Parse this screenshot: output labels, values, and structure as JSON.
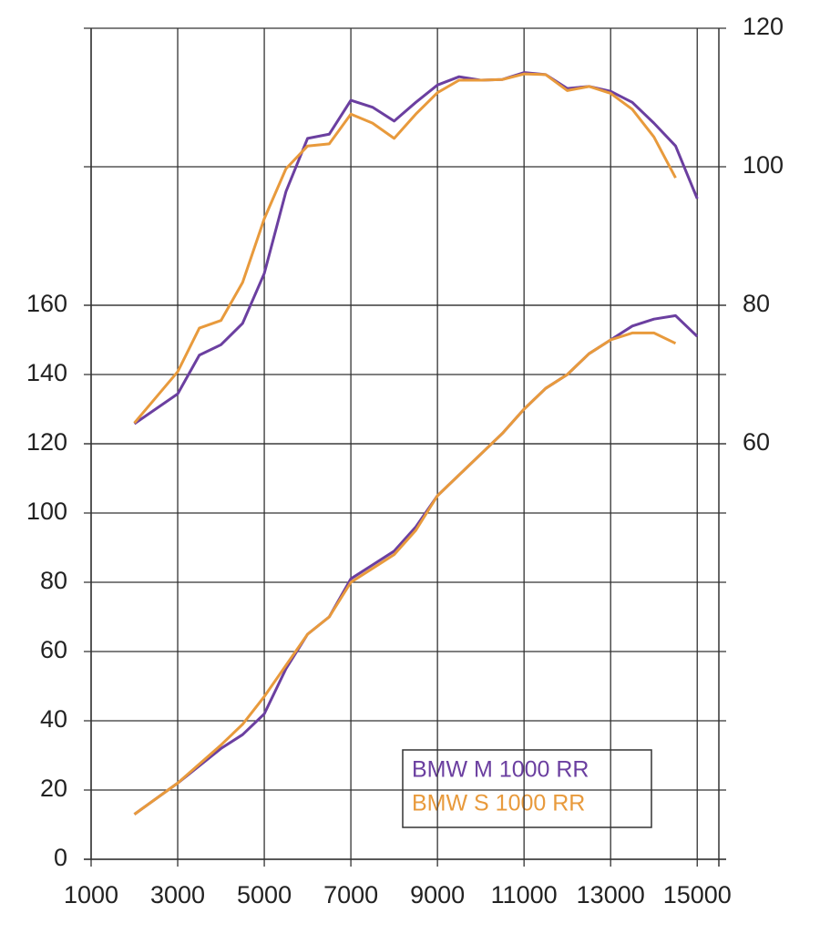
{
  "chart_data": {
    "type": "line",
    "xlim": [
      1000,
      15500
    ],
    "xticks": [
      1000,
      3000,
      5000,
      7000,
      9000,
      11000,
      13000,
      15000
    ],
    "ylim": [
      0,
      240
    ],
    "yticks": [
      0,
      20,
      40,
      60,
      80,
      100,
      120,
      140,
      160
    ],
    "y2lim": [
      0,
      120
    ],
    "y2ticks": [
      60,
      80,
      100,
      120
    ],
    "grid": true,
    "legend": "lower right",
    "series": [
      {
        "name": "BMW M 1000 RR",
        "color": "#6b3fa0",
        "axis": "y2",
        "x": [
          2000,
          3000,
          3500,
          4000,
          4500,
          5000,
          5500,
          6000,
          6500,
          7000,
          7500,
          8000,
          8500,
          9000,
          9500,
          10000,
          10500,
          11000,
          11500,
          12000,
          12500,
          13000,
          13500,
          14000,
          14500,
          15000
        ],
        "values": [
          62.9,
          67.2,
          72.8,
          74.3,
          77.4,
          84.6,
          96.4,
          104.1,
          104.7,
          109.6,
          108.6,
          106.6,
          109.3,
          111.8,
          113,
          112.5,
          112.6,
          113.6,
          113.3,
          111.3,
          111.6,
          110.9,
          109.3,
          106.3,
          103,
          95.4
        ]
      },
      {
        "name": "BMW S 1000 RR",
        "color": "#e89a3c",
        "axis": "y2",
        "x": [
          2000,
          3000,
          3500,
          4000,
          4500,
          5000,
          5500,
          6000,
          6500,
          7000,
          7500,
          8000,
          8500,
          9000,
          9500,
          10000,
          10500,
          11000,
          11500,
          12000,
          12500,
          13000,
          13500,
          14000,
          14500
        ],
        "values": [
          63,
          70.4,
          76.7,
          77.8,
          83.3,
          92.5,
          99.7,
          103,
          103.3,
          107.6,
          106.3,
          104.1,
          107.6,
          110.7,
          112.5,
          112.5,
          112.6,
          113.4,
          113.3,
          111,
          111.6,
          110.6,
          108.3,
          104.3,
          98.4
        ]
      },
      {
        "name": "BMW M 1000 RR",
        "color": "#6b3fa0",
        "x": [
          2000,
          3000,
          4000,
          4500,
          5000,
          5500,
          6000,
          6500,
          7000,
          7500,
          8000,
          8500,
          9000,
          9500,
          10000,
          10500,
          11000,
          11500,
          12000,
          12500,
          13000,
          13500,
          14000,
          14500,
          15000
        ],
        "values": [
          13,
          22,
          32,
          36,
          42,
          55,
          65,
          70,
          81,
          85,
          89,
          96,
          105,
          111,
          117,
          123,
          130,
          136,
          140,
          146,
          150,
          154,
          156,
          157,
          151
        ]
      },
      {
        "name": "BMW S 1000 RR",
        "color": "#e89a3c",
        "x": [
          2000,
          3000,
          4000,
          4500,
          5000,
          5500,
          6000,
          6500,
          7000,
          7500,
          8000,
          8500,
          9000,
          9500,
          10000,
          10500,
          11000,
          11500,
          12000,
          12500,
          13000,
          13500,
          14000,
          14500
        ],
        "values": [
          13,
          22,
          33,
          39,
          47,
          56,
          65,
          70,
          80,
          84,
          88,
          95,
          105,
          111,
          117,
          123,
          130,
          136,
          140,
          146,
          150,
          152,
          152,
          149
        ]
      }
    ]
  }
}
